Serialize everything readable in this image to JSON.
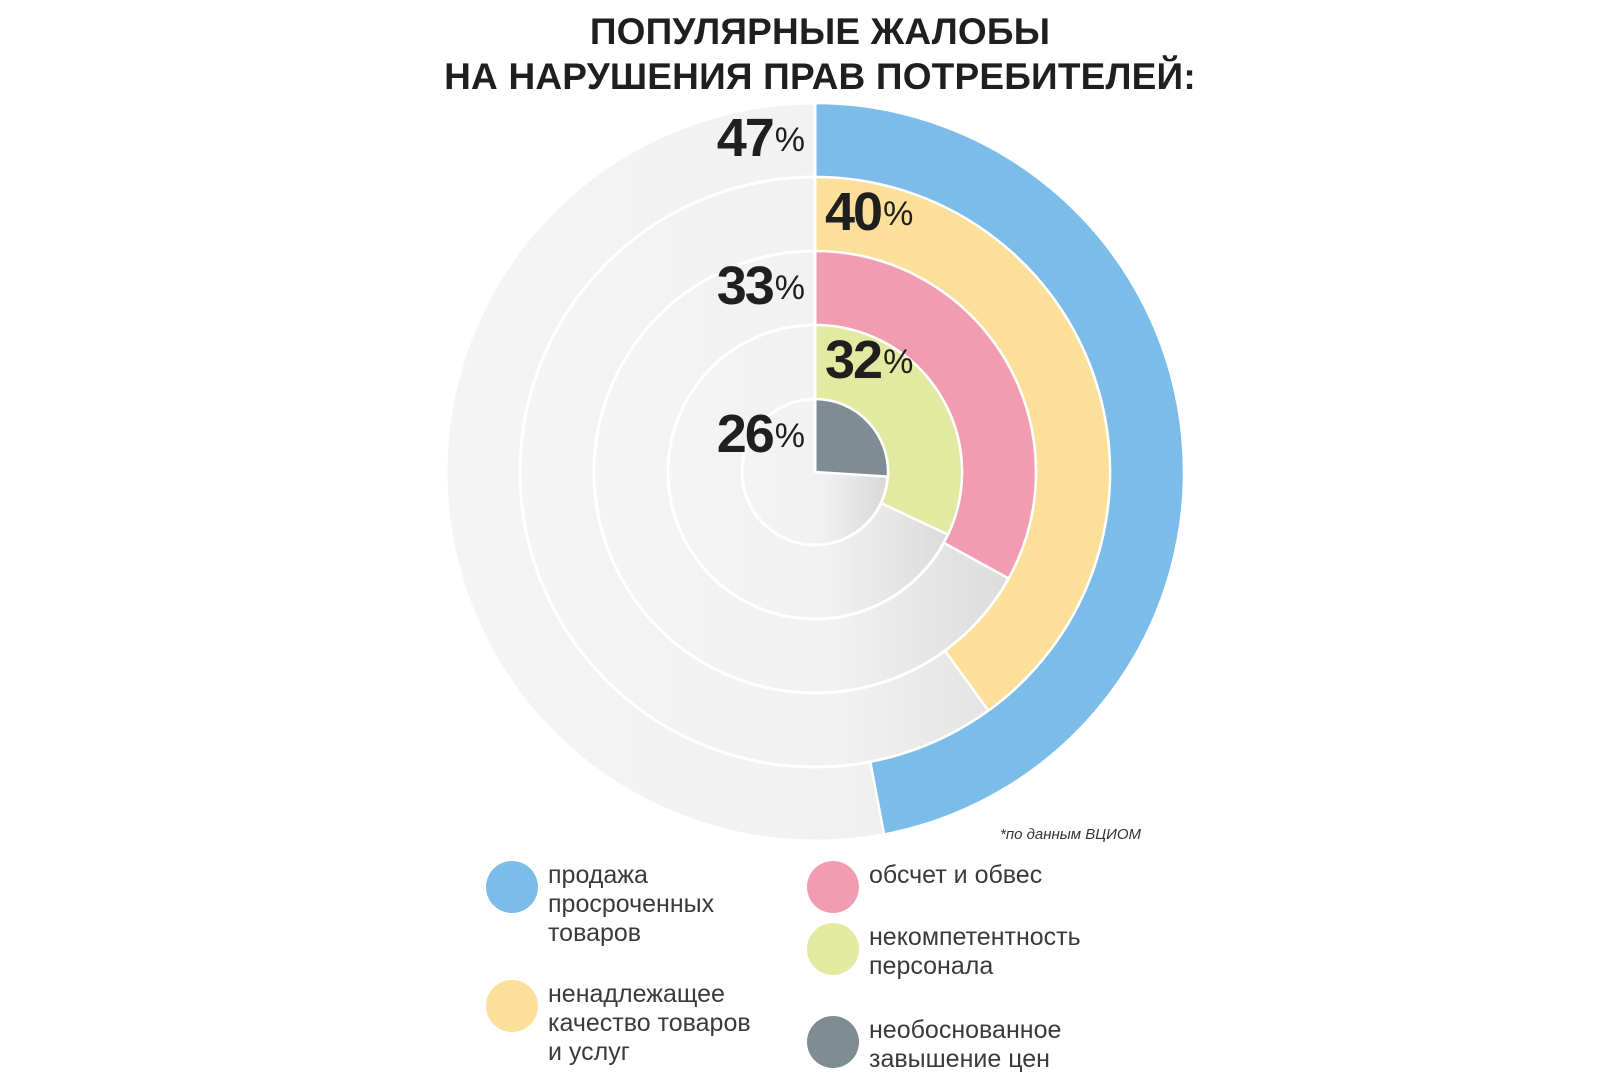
{
  "title": {
    "line1": "ПОПУЛЯРНЫЕ ЖАЛОБЫ",
    "line2": "НА НАРУШЕНИЯ ПРАВ ПОТРЕБИТЕЛЕЙ:"
  },
  "source_note": "*по данным ВЦИОМ",
  "chart_data": {
    "type": "radial-bar",
    "title": "ПОПУЛЯРНЫЕ ЖАЛОБЫ НА НАРУШЕНИЯ ПРАВ ПОТРЕБИТЕЛЕЙ:",
    "unit": "%",
    "categories": [
      "продажа просроченных товаров",
      "ненадлежащее качество товаров и услуг",
      "обсчет и обвес",
      "некомпетентность персонала",
      "необоснованное завышение цен"
    ],
    "values": [
      47,
      40,
      33,
      32,
      26
    ],
    "labels": [
      "47",
      "40",
      "33",
      "32",
      "26"
    ],
    "colors": [
      "#7cbce8",
      "#fcdf99",
      "#f29cb2",
      "#e2eaa1",
      "#7f8c94"
    ],
    "track_color": "#ededed",
    "ring_order": "outer-to-inner"
  },
  "legend": [
    {
      "label": "продажа\nпросроченных\nтоваров",
      "color": "#7cbce8"
    },
    {
      "label": "ненадлежащее\nкачество товаров\nи услуг",
      "color": "#fcdf99"
    },
    {
      "label": "обсчет и обвес",
      "color": "#f29cb2"
    },
    {
      "label": "некомпетентность\nперсонала",
      "color": "#e2eaa1"
    },
    {
      "label": "необоснованное\nзавышение цен",
      "color": "#7f8c94"
    }
  ]
}
